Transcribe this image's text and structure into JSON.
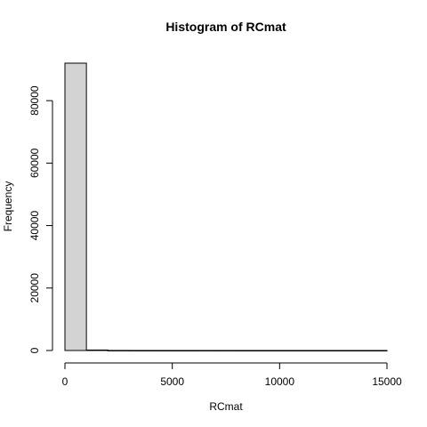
{
  "chart_data": {
    "type": "bar",
    "title": "Histogram of RCmat",
    "xlabel": "RCmat",
    "ylabel": "Frequency",
    "bin_width": 1000,
    "bins": [
      {
        "start": 0,
        "end": 1000,
        "count": 92000
      },
      {
        "start": 1000,
        "end": 2000,
        "count": 150
      },
      {
        "start": 2000,
        "end": 3000,
        "count": 20
      },
      {
        "start": 3000,
        "end": 4000,
        "count": 8
      },
      {
        "start": 4000,
        "end": 5000,
        "count": 5
      },
      {
        "start": 5000,
        "end": 6000,
        "count": 3
      },
      {
        "start": 6000,
        "end": 7000,
        "count": 2
      },
      {
        "start": 7000,
        "end": 8000,
        "count": 2
      },
      {
        "start": 8000,
        "end": 9000,
        "count": 1
      },
      {
        "start": 9000,
        "end": 10000,
        "count": 1
      },
      {
        "start": 10000,
        "end": 11000,
        "count": 1
      },
      {
        "start": 11000,
        "end": 12000,
        "count": 1
      },
      {
        "start": 12000,
        "end": 13000,
        "count": 1
      },
      {
        "start": 13000,
        "end": 14000,
        "count": 1
      },
      {
        "start": 14000,
        "end": 15000,
        "count": 1
      }
    ],
    "xlim": [
      0,
      15000
    ],
    "ylim": [
      0,
      92000
    ],
    "xticks": [
      0,
      5000,
      10000,
      15000
    ],
    "yticks": [
      0,
      20000,
      40000,
      60000,
      80000
    ],
    "grid": false,
    "bar_color": "#d3d3d3"
  }
}
